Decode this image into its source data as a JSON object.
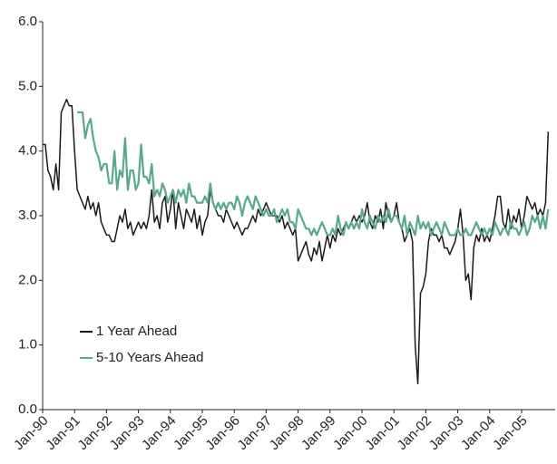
{
  "chart_data": {
    "type": "line",
    "categories": [
      "Jan-90",
      null,
      null,
      null,
      null,
      null,
      null,
      null,
      null,
      null,
      null,
      null,
      "Jan-91",
      null,
      null,
      null,
      null,
      null,
      null,
      null,
      null,
      null,
      null,
      null,
      "Jan-92",
      null,
      null,
      null,
      null,
      null,
      null,
      null,
      null,
      null,
      null,
      null,
      "Jan-93",
      null,
      null,
      null,
      null,
      null,
      null,
      null,
      null,
      null,
      null,
      null,
      "Jan-94",
      null,
      null,
      null,
      null,
      null,
      null,
      null,
      null,
      null,
      null,
      null,
      "Jan-95",
      null,
      null,
      null,
      null,
      null,
      null,
      null,
      null,
      null,
      null,
      null,
      "Jan-96",
      null,
      null,
      null,
      null,
      null,
      null,
      null,
      null,
      null,
      null,
      null,
      "Jan-97",
      null,
      null,
      null,
      null,
      null,
      null,
      null,
      null,
      null,
      null,
      null,
      "Jan-98",
      null,
      null,
      null,
      null,
      null,
      null,
      null,
      null,
      null,
      null,
      null,
      "Jan-99",
      null,
      null,
      null,
      null,
      null,
      null,
      null,
      null,
      null,
      null,
      null,
      "Jan-00",
      null,
      null,
      null,
      null,
      null,
      null,
      null,
      null,
      null,
      null,
      null,
      "Jan-01",
      null,
      null,
      null,
      null,
      null,
      null,
      null,
      null,
      null,
      null,
      null,
      "Jan-02",
      null,
      null,
      null,
      null,
      null,
      null,
      null,
      null,
      null,
      null,
      null,
      "Jan-03",
      null,
      null,
      null,
      null,
      null,
      null,
      null,
      null,
      null,
      null,
      null,
      "Jan-04",
      null,
      null,
      null,
      null,
      null,
      null,
      null,
      null,
      null,
      null,
      null,
      "Jan-05",
      null,
      null,
      null,
      null,
      null,
      null,
      null,
      null,
      null,
      null
    ],
    "series": [
      {
        "name": "1 Year Ahead",
        "color": "#1a1a1a",
        "values": [
          4.1,
          4.1,
          3.7,
          3.6,
          3.4,
          3.8,
          3.4,
          4.6,
          4.7,
          4.8,
          4.7,
          4.7,
          4.0,
          3.4,
          3.3,
          3.2,
          3.1,
          3.3,
          3.1,
          3.2,
          3.0,
          3.2,
          2.9,
          2.8,
          2.7,
          2.7,
          2.6,
          2.6,
          2.8,
          3.0,
          2.9,
          3.1,
          2.8,
          2.9,
          2.7,
          2.8,
          2.9,
          2.8,
          2.9,
          2.8,
          3.0,
          3.4,
          2.9,
          3.0,
          2.8,
          3.2,
          3.3,
          2.9,
          3.1,
          3.4,
          2.8,
          3.2,
          3.0,
          2.8,
          3.1,
          3.0,
          2.9,
          3.1,
          2.8,
          3.0,
          2.7,
          2.9,
          3.0,
          3.4,
          3.2,
          3.1,
          3.0,
          3.0,
          2.9,
          3.1,
          3.0,
          2.9,
          2.8,
          2.9,
          2.8,
          2.7,
          2.8,
          2.8,
          2.9,
          3.0,
          2.9,
          3.1,
          3.0,
          3.1,
          3.2,
          3.1,
          3.0,
          3.0,
          3.0,
          2.9,
          3.0,
          2.8,
          2.9,
          2.8,
          2.7,
          2.8,
          2.3,
          2.4,
          2.5,
          2.6,
          2.4,
          2.3,
          2.5,
          2.4,
          2.6,
          2.3,
          2.5,
          2.7,
          2.5,
          2.7,
          2.6,
          2.8,
          2.7,
          2.8,
          2.9,
          2.8,
          2.9,
          3.0,
          2.9,
          3.0,
          2.9,
          3.0,
          3.2,
          2.9,
          2.8,
          3.0,
          2.9,
          3.1,
          2.8,
          3.2,
          3.0,
          2.9,
          3.0,
          3.2,
          2.9,
          2.8,
          2.6,
          2.7,
          2.8,
          2.6,
          1.0,
          0.4,
          1.8,
          1.9,
          2.1,
          2.6,
          2.8,
          2.7,
          2.7,
          2.6,
          2.7,
          2.5,
          2.5,
          2.4,
          2.5,
          2.6,
          2.8,
          3.1,
          2.7,
          2.0,
          2.1,
          1.7,
          2.5,
          2.7,
          2.6,
          2.8,
          2.6,
          2.7,
          2.6,
          2.8,
          3.0,
          3.3,
          3.3,
          2.9,
          2.8,
          3.1,
          2.8,
          3.0,
          2.9,
          3.1,
          2.8,
          3.0,
          3.3,
          3.2,
          3.1,
          3.2,
          3.0,
          3.1,
          3.0,
          3.2,
          4.3
        ]
      },
      {
        "name": "5-10 Years Ahead",
        "color": "#5aa88e",
        "values": [
          null,
          null,
          null,
          null,
          null,
          null,
          null,
          null,
          null,
          null,
          null,
          null,
          null,
          4.6,
          4.6,
          4.6,
          4.2,
          4.4,
          4.5,
          4.2,
          4.0,
          3.9,
          3.7,
          3.8,
          3.8,
          3.5,
          3.5,
          4.0,
          3.4,
          3.7,
          3.6,
          4.2,
          3.4,
          3.7,
          3.7,
          3.4,
          3.5,
          4.1,
          3.6,
          3.6,
          3.5,
          3.8,
          3.3,
          3.4,
          3.3,
          3.5,
          3.4,
          3.2,
          3.3,
          3.4,
          3.2,
          3.4,
          3.3,
          3.4,
          3.2,
          3.5,
          3.3,
          3.3,
          3.2,
          3.2,
          3.2,
          3.3,
          3.2,
          3.5,
          3.2,
          3.1,
          3.2,
          3.1,
          3.2,
          3.1,
          3.2,
          3.2,
          3.1,
          3.3,
          3.2,
          3.0,
          3.2,
          3.3,
          3.2,
          3.1,
          3.3,
          3.2,
          3.1,
          3.0,
          3.1,
          3.0,
          3.0,
          3.1,
          2.9,
          3.0,
          3.1,
          3.0,
          3.1,
          2.9,
          2.9,
          2.8,
          3.1,
          3.0,
          2.9,
          2.8,
          2.8,
          2.7,
          2.8,
          2.7,
          2.8,
          2.9,
          2.8,
          2.7,
          2.7,
          2.8,
          2.7,
          3.0,
          2.8,
          2.7,
          2.9,
          2.8,
          2.9,
          2.8,
          2.9,
          2.8,
          3.1,
          2.9,
          2.8,
          3.0,
          2.9,
          2.8,
          3.0,
          2.9,
          3.0,
          2.9,
          3.1,
          2.9,
          3.0,
          3.0,
          2.9,
          2.8,
          3.0,
          2.7,
          2.9,
          2.8,
          2.7,
          3.0,
          2.8,
          2.9,
          2.8,
          2.9,
          2.7,
          2.8,
          2.9,
          2.8,
          2.7,
          2.9,
          2.8,
          2.7,
          2.7,
          2.7,
          2.8,
          2.7,
          2.7,
          2.8,
          2.7,
          2.7,
          2.8,
          2.9,
          2.8,
          2.7,
          2.8,
          2.7,
          2.8,
          2.7,
          2.9,
          2.8,
          2.7,
          2.8,
          2.8,
          2.7,
          2.9,
          2.8,
          2.8,
          2.7,
          2.8,
          2.9,
          2.7,
          2.8,
          3.0,
          2.9,
          3.0,
          2.8,
          3.0,
          2.8,
          3.1
        ]
      }
    ],
    "ylim": [
      0,
      6
    ],
    "yticks": [
      {
        "value": 0,
        "label": "0.0"
      },
      {
        "value": 1,
        "label": "1.0"
      },
      {
        "value": 2,
        "label": "2.0"
      },
      {
        "value": 3,
        "label": "3.0"
      },
      {
        "value": 4,
        "label": "4.0"
      },
      {
        "value": 5,
        "label": "5.0"
      },
      {
        "value": 6,
        "label": "6.0"
      }
    ],
    "grid": false,
    "legend": "lower-left"
  }
}
